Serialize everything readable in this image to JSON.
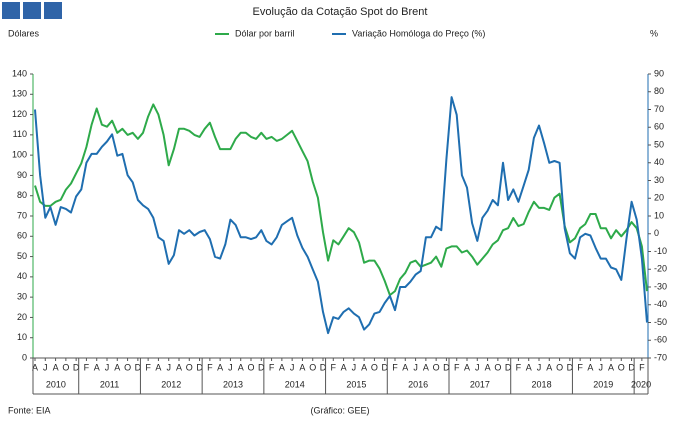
{
  "chart_data": {
    "type": "line",
    "title": "Evolução da Cotação Spot do Brent",
    "ylabel": "Dólares",
    "y2label": "%",
    "source": "Fonte: EIA",
    "credit": "(Gráfico: GEE)",
    "categories": [
      "A",
      null,
      "J",
      null,
      "A",
      null,
      "O",
      null,
      "D",
      null,
      "F",
      null,
      "A",
      null,
      "J",
      null,
      "A",
      null,
      "O",
      null,
      "D",
      null,
      "F",
      null,
      "A",
      null,
      "J",
      null,
      "A",
      null,
      "O",
      null,
      "D",
      null,
      "F",
      null,
      "A",
      null,
      "J",
      null,
      "A",
      null,
      "O",
      null,
      "D",
      null,
      "F",
      null,
      "A",
      null,
      "J",
      null,
      "A",
      null,
      "O",
      null,
      "D",
      null,
      "F",
      null,
      "A",
      null,
      "J",
      null,
      "A",
      null,
      "O",
      null,
      "D",
      null,
      "F",
      null,
      "A",
      null,
      "J",
      null,
      "A",
      null,
      "O",
      null,
      "D",
      null,
      "F",
      null,
      "A",
      null,
      "J",
      null,
      "A",
      null,
      "O",
      null,
      "D",
      null,
      "F",
      null,
      "A",
      null,
      "J",
      null,
      "A",
      null,
      "O",
      null,
      "D",
      null,
      "F",
      null,
      "A",
      null,
      "J",
      null,
      "A",
      null,
      "O",
      null,
      "D",
      null,
      "F",
      null
    ],
    "years": [
      "2010",
      "2011",
      "2012",
      "2013",
      "2014",
      "2015",
      "2016",
      "2017",
      "2018",
      "2019",
      "2020"
    ],
    "series": [
      {
        "name": "Dólar por barril",
        "color": "#2eaa4a",
        "axis": "y",
        "values": [
          85,
          77,
          75,
          75,
          77,
          78,
          83,
          86,
          91,
          96,
          104,
          115,
          123,
          115,
          114,
          117,
          111,
          113,
          110,
          111,
          108,
          111,
          119,
          125,
          120,
          110,
          95,
          103,
          113,
          113,
          112,
          110,
          109,
          113,
          116,
          109,
          103,
          103,
          103,
          108,
          111,
          111,
          109,
          108,
          111,
          108,
          109,
          107,
          108,
          110,
          112,
          107,
          102,
          97,
          87,
          79,
          62,
          48,
          58,
          56,
          60,
          64,
          62,
          57,
          47,
          48,
          48,
          44,
          38,
          31,
          33,
          39,
          42,
          47,
          48,
          45,
          46,
          47,
          50,
          45,
          54,
          55,
          55,
          52,
          53,
          50,
          46,
          49,
          52,
          56,
          58,
          63,
          64,
          69,
          65,
          66,
          72,
          77,
          74,
          74,
          73,
          79,
          81,
          65,
          57,
          59,
          64,
          66,
          71,
          71,
          64,
          64,
          59,
          63,
          60,
          63,
          67,
          64,
          55,
          33
        ]
      },
      {
        "name": "Variação Homóloga do Preço (%)",
        "color": "#1f6eb0",
        "axis": "y2",
        "values": [
          70,
          33,
          9,
          15,
          5,
          15,
          14,
          12,
          21,
          25,
          40,
          45,
          45,
          49,
          52,
          56,
          44,
          45,
          33,
          29,
          19,
          16,
          14,
          9,
          -2,
          -4,
          -17,
          -12,
          2,
          0,
          2,
          -1,
          1,
          2,
          -3,
          -13,
          -14,
          -6,
          8,
          5,
          -2,
          -2,
          -3,
          -2,
          2,
          -4,
          -6,
          -2,
          5,
          7,
          9,
          -1,
          -8,
          -13,
          -20,
          -27,
          -44,
          -56,
          -47,
          -48,
          -44,
          -42,
          -45,
          -47,
          -54,
          -51,
          -45,
          -44,
          -39,
          -35,
          -43,
          -30,
          -30,
          -27,
          -23,
          -21,
          -2,
          -2,
          4,
          2,
          42,
          77,
          67,
          33,
          26,
          6,
          -4,
          9,
          13,
          19,
          16,
          40,
          19,
          25,
          18,
          27,
          36,
          54,
          61,
          51,
          40,
          41,
          40,
          3,
          -11,
          -14,
          -2,
          0,
          -1,
          -8,
          -14,
          -14,
          -19,
          -20,
          -26,
          -3,
          18,
          8,
          -14,
          -50
        ]
      }
    ],
    "ylim": [
      0,
      140
    ],
    "yticks": [
      0,
      10,
      20,
      30,
      40,
      50,
      60,
      70,
      80,
      90,
      100,
      110,
      120,
      130,
      140
    ],
    "y2lim": [
      -70,
      90
    ],
    "y2ticks": [
      -70,
      -60,
      -50,
      -40,
      -30,
      -20,
      -10,
      0,
      10,
      20,
      30,
      40,
      50,
      60,
      70,
      80,
      90
    ],
    "legend": "top"
  }
}
